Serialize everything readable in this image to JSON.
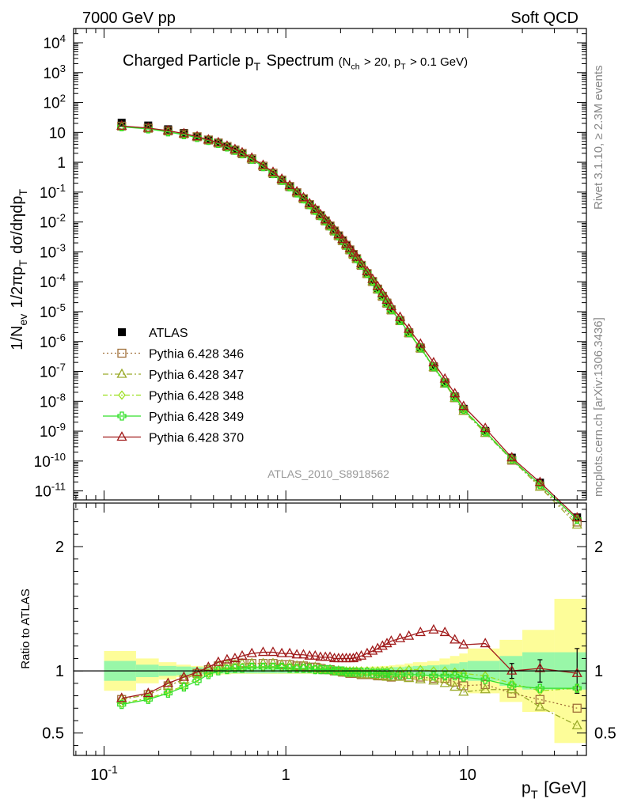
{
  "header": {
    "left": "7000 GeV pp",
    "right": "Soft QCD"
  },
  "side": {
    "rivet": "Rivet 3.1.10, ≥ 2.3M events",
    "mcplots": "mcplots.cern.ch [arXiv:1306.3436]"
  },
  "chart_data": {
    "type": "scatter",
    "title": "Charged Particle p_T Spectrum",
    "title_sub": "(N_ch > 20, p_T > 0.1 GeV)",
    "analysis_label": "ATLAS_2010_S8918562",
    "xlabel": "p_T [GeV]",
    "ylabel": "1/N_ev 1/2πp_T dσ/dηdp_T",
    "ratio_ylabel": "Ratio to ATLAS",
    "xscale": "log",
    "yscale": "log",
    "xlim": [
      0.068,
      45
    ],
    "ylim": [
      5e-12,
      30000.0
    ],
    "ratio_ylim": [
      0.32,
      2.35
    ],
    "x_ticks": [
      "10^-1",
      "1",
      "10"
    ],
    "y_ticks": [
      "10^-11",
      "10^-10",
      "10^-9",
      "10^-8",
      "10^-7",
      "10^-6",
      "10^-5",
      "10^-4",
      "10^-3",
      "10^-2",
      "10^-1",
      "1",
      "10",
      "10^2",
      "10^3",
      "10^4"
    ],
    "ratio_ticks": [
      "0.5",
      "1",
      "2"
    ],
    "legend_position": "lower-left",
    "x": [
      0.125,
      0.175,
      0.225,
      0.275,
      0.325,
      0.375,
      0.425,
      0.475,
      0.525,
      0.575,
      0.65,
      0.75,
      0.85,
      0.95,
      1.05,
      1.15,
      1.25,
      1.35,
      1.45,
      1.55,
      1.65,
      1.75,
      1.85,
      1.95,
      2.05,
      2.15,
      2.25,
      2.35,
      2.45,
      2.6,
      2.8,
      3.0,
      3.2,
      3.4,
      3.6,
      3.8,
      4.25,
      4.75,
      5.5,
      6.5,
      7.5,
      8.5,
      9.5,
      12.5,
      17.5,
      25.0,
      40.0
    ],
    "atlas_values": [
      21.0,
      17.0,
      12.7,
      9.6,
      7.3,
      5.5,
      4.25,
      3.2,
      2.45,
      1.87,
      1.22,
      0.695,
      0.405,
      0.24,
      0.147,
      0.092,
      0.058,
      0.0372,
      0.0243,
      0.0161,
      0.0108,
      0.0073,
      0.005,
      0.00345,
      0.0024,
      0.00168,
      0.00119,
      0.00084,
      0.000605,
      0.000365,
      0.000193,
      0.000105,
      5.9e-05,
      3.4e-05,
      2e-05,
      1.2e-05,
      5.2e-06,
      2.05e-06,
      6.3e-07,
      1.48e-07,
      4.3e-08,
      1.45e-08,
      5.6e-09,
      1.02e-09,
      1.3e-10,
      1.9e-11,
      1.3e-12
    ],
    "atlas_ratio_errors": [
      0,
      0,
      0,
      0,
      0,
      0,
      0,
      0,
      0,
      0,
      0,
      0,
      0,
      0,
      0,
      0,
      0,
      0,
      0,
      0,
      0,
      0,
      0,
      0,
      0,
      0,
      0,
      0,
      0,
      0,
      0,
      0,
      0,
      0,
      0,
      0,
      0,
      0,
      0,
      0,
      0,
      0,
      0,
      0,
      0.06,
      0.09,
      0.18
    ],
    "band_edges": [
      0.1,
      0.15,
      0.2,
      0.25,
      0.3,
      0.35,
      0.4,
      0.45,
      0.5,
      0.55,
      0.6,
      0.7,
      0.8,
      0.9,
      1.0,
      1.1,
      1.2,
      1.3,
      1.4,
      1.5,
      1.6,
      1.7,
      1.8,
      1.9,
      2.0,
      2.1,
      2.2,
      2.3,
      2.4,
      2.5,
      2.7,
      2.9,
      3.1,
      3.3,
      3.5,
      3.7,
      4.0,
      4.5,
      5.0,
      6.0,
      7.0,
      8.0,
      9.0,
      10.0,
      15.0,
      20.0,
      30.0,
      50.0
    ],
    "band_stat": [
      0.08,
      0.05,
      0.04,
      0.035,
      0.03,
      0.025,
      0.022,
      0.02,
      0.02,
      0.02,
      0.02,
      0.02,
      0.02,
      0.02,
      0.02,
      0.02,
      0.02,
      0.02,
      0.02,
      0.02,
      0.02,
      0.02,
      0.02,
      0.02,
      0.02,
      0.02,
      0.02,
      0.02,
      0.02,
      0.025,
      0.025,
      0.025,
      0.025,
      0.025,
      0.025,
      0.03,
      0.03,
      0.035,
      0.04,
      0.045,
      0.05,
      0.06,
      0.07,
      0.08,
      0.12,
      0.15,
      0.15
    ],
    "band_total": [
      0.16,
      0.1,
      0.07,
      0.05,
      0.04,
      0.035,
      0.03,
      0.028,
      0.025,
      0.025,
      0.025,
      0.025,
      0.025,
      0.025,
      0.025,
      0.025,
      0.025,
      0.025,
      0.025,
      0.025,
      0.025,
      0.025,
      0.025,
      0.025,
      0.025,
      0.025,
      0.025,
      0.025,
      0.025,
      0.03,
      0.03,
      0.035,
      0.035,
      0.04,
      0.04,
      0.045,
      0.05,
      0.06,
      0.07,
      0.08,
      0.1,
      0.12,
      0.14,
      0.18,
      0.25,
      0.33,
      0.58
    ],
    "series": [
      {
        "name": "ATLAS",
        "color": "#000000",
        "marker": "square-filled",
        "ratio": [
          1,
          1,
          1,
          1,
          1,
          1,
          1,
          1,
          1,
          1,
          1,
          1,
          1,
          1,
          1,
          1,
          1,
          1,
          1,
          1,
          1,
          1,
          1,
          1,
          1,
          1,
          1,
          1,
          1,
          1,
          1,
          1,
          1,
          1,
          1,
          1,
          1,
          1,
          1,
          1,
          1,
          1,
          1,
          1,
          1,
          1,
          1
        ]
      },
      {
        "name": "Pythia 6.428 346",
        "color": "#a0703a",
        "marker": "square-open",
        "dash": "2,3",
        "ratio": [
          0.77,
          0.81,
          0.88,
          0.93,
          0.98,
          1.01,
          1.04,
          1.05,
          1.05,
          1.06,
          1.06,
          1.06,
          1.06,
          1.05,
          1.05,
          1.04,
          1.04,
          1.03,
          1.03,
          1.02,
          1.01,
          1.01,
          1.0,
          1.0,
          0.99,
          0.99,
          0.98,
          0.98,
          0.98,
          0.97,
          0.97,
          0.97,
          0.96,
          0.96,
          0.96,
          0.95,
          0.96,
          0.95,
          0.95,
          0.94,
          0.94,
          0.91,
          0.88,
          0.89,
          0.82,
          0.77,
          0.7
        ]
      },
      {
        "name": "Pythia 6.428 347",
        "color": "#9aaa2a",
        "marker": "triangle-open",
        "dash": "7,3,2,3",
        "ratio": [
          0.77,
          0.81,
          0.88,
          0.93,
          0.98,
          1.01,
          1.04,
          1.05,
          1.05,
          1.06,
          1.06,
          1.06,
          1.06,
          1.05,
          1.05,
          1.04,
          1.04,
          1.03,
          1.03,
          1.02,
          1.01,
          1.01,
          1.0,
          1.0,
          0.99,
          0.99,
          0.98,
          0.98,
          0.98,
          0.97,
          0.97,
          0.97,
          0.96,
          0.96,
          0.95,
          0.95,
          0.95,
          0.94,
          0.93,
          0.92,
          0.9,
          0.87,
          0.83,
          0.85,
          0.85,
          0.71,
          0.56
        ]
      },
      {
        "name": "Pythia 6.428 348",
        "color": "#9be01e",
        "marker": "diamond-open",
        "dash": "6,3,2,3",
        "ratio": [
          0.74,
          0.78,
          0.83,
          0.88,
          0.94,
          0.98,
          1.01,
          1.02,
          1.03,
          1.03,
          1.03,
          1.03,
          1.03,
          1.03,
          1.03,
          1.02,
          1.02,
          1.02,
          1.01,
          1.01,
          1.01,
          1.01,
          1.0,
          1.0,
          1.0,
          1.0,
          1.0,
          1.0,
          1.0,
          1.0,
          1.0,
          1.0,
          1.0,
          1.0,
          1.0,
          1.0,
          1.0,
          1.01,
          1.01,
          1.0,
          1.0,
          0.99,
          0.98,
          0.96,
          0.9,
          0.84,
          0.86
        ]
      },
      {
        "name": "Pythia 6.428 349",
        "color": "#33e02a",
        "marker": "cross-open",
        "ratio": [
          0.73,
          0.77,
          0.82,
          0.87,
          0.92,
          0.97,
          1.0,
          1.01,
          1.02,
          1.02,
          1.03,
          1.03,
          1.03,
          1.03,
          1.02,
          1.02,
          1.02,
          1.02,
          1.01,
          1.01,
          1.01,
          1.01,
          1.0,
          1.0,
          1.0,
          0.99,
          0.99,
          0.99,
          0.99,
          0.99,
          0.99,
          0.98,
          0.98,
          0.98,
          0.98,
          0.97,
          0.97,
          0.97,
          0.97,
          0.96,
          0.96,
          0.96,
          0.95,
          0.93,
          0.88,
          0.86,
          0.86
        ]
      },
      {
        "name": "Pythia 6.428 370",
        "color": "#a01a1a",
        "marker": "triangle-open",
        "ratio": [
          0.78,
          0.82,
          0.9,
          0.95,
          0.99,
          1.03,
          1.07,
          1.09,
          1.1,
          1.12,
          1.14,
          1.15,
          1.15,
          1.14,
          1.14,
          1.13,
          1.13,
          1.12,
          1.12,
          1.11,
          1.11,
          1.11,
          1.1,
          1.1,
          1.1,
          1.1,
          1.1,
          1.1,
          1.11,
          1.12,
          1.14,
          1.16,
          1.18,
          1.2,
          1.22,
          1.24,
          1.26,
          1.28,
          1.31,
          1.33,
          1.31,
          1.25,
          1.21,
          1.22,
          1.0,
          1.02,
          0.98
        ]
      }
    ]
  }
}
